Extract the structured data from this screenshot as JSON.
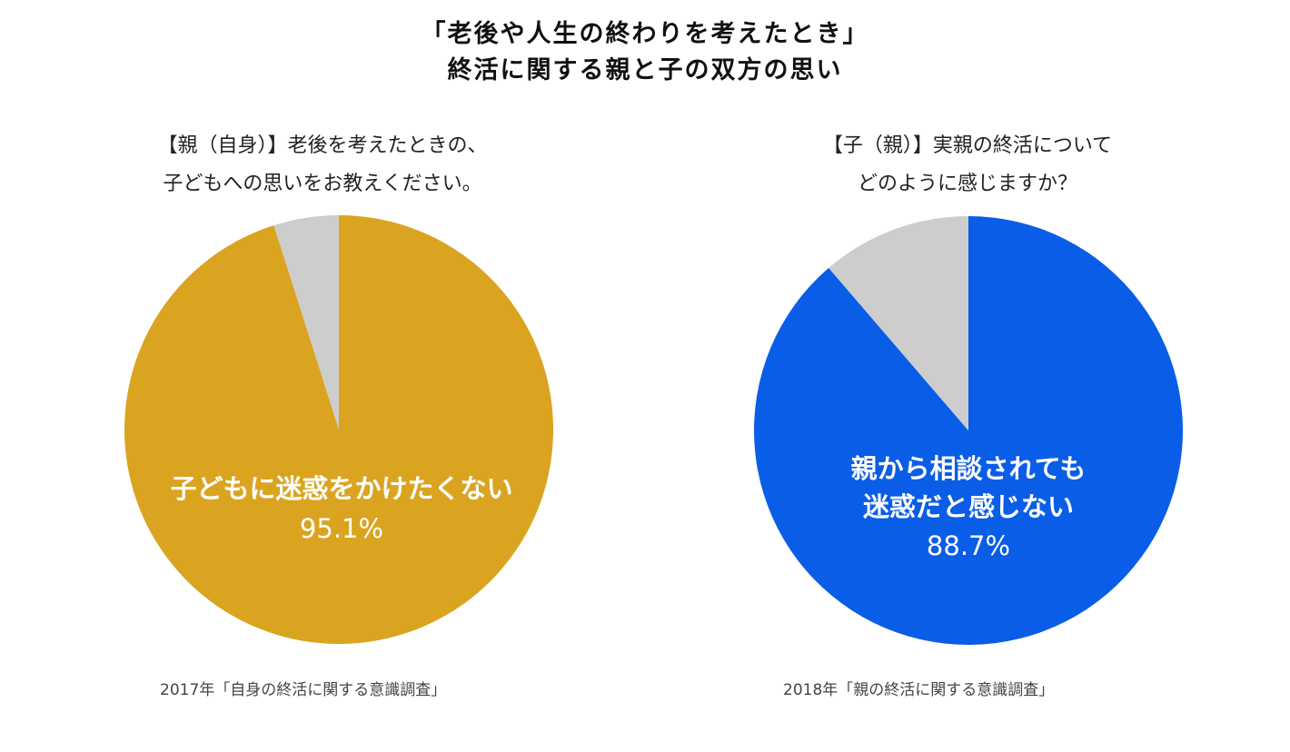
{
  "title_lines": [
    "「老後や人生の終わりを考えたとき」",
    "終活に関する親と子の双方の思い"
  ],
  "colors": {
    "left_main": "#DAA420",
    "right_main": "#0A5DE6",
    "rest": "#CDCDCD",
    "label_text": "#FFFFFF"
  },
  "charts": [
    {
      "question_lines": [
        "【親（自身）】老後を考えたときの、",
        "子どもへの思いをお教えください。"
      ],
      "label_lines": [
        "子どもに迷惑をかけたくない"
      ],
      "value_text": "95.1%",
      "source": "2017年「自身の終活に関する意識調査」"
    },
    {
      "question_lines": [
        "【子（親）】実親の終活について",
        "どのように感じますか？"
      ],
      "label_lines": [
        "親から相談されても",
        "迷惑だと感じない"
      ],
      "value_text": "88.7%",
      "source": "2018年「親の終活に関する意識調査」"
    }
  ],
  "chart_data": [
    {
      "type": "pie",
      "labels": [
        "子どもに迷惑をかけたくない",
        ""
      ],
      "values": [
        95.1,
        4.9
      ],
      "colors": [
        "#DAA420",
        "#CDCDCD"
      ],
      "start_angle_deg": 0,
      "direction": "clockwise"
    },
    {
      "type": "pie",
      "labels": [
        "親から相談されても迷惑だと感じない",
        ""
      ],
      "values": [
        88.7,
        11.3
      ],
      "colors": [
        "#0A5DE6",
        "#CDCDCD"
      ],
      "start_angle_deg": 0,
      "direction": "clockwise"
    }
  ]
}
